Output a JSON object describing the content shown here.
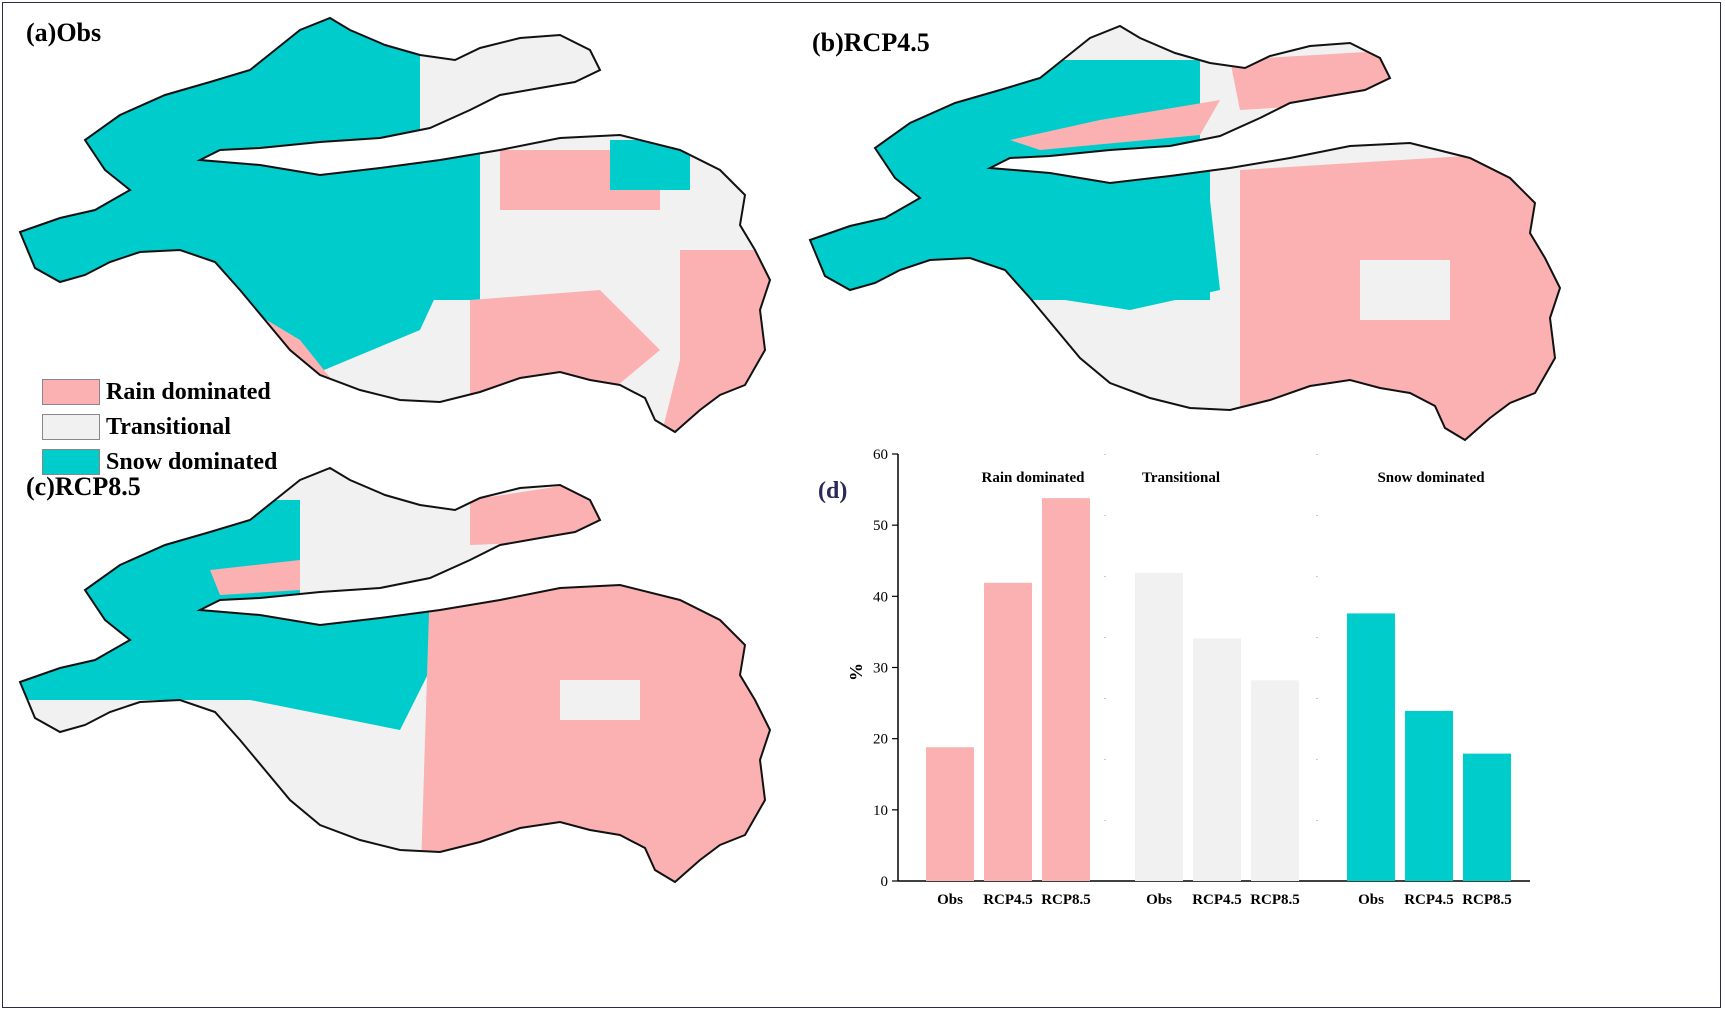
{
  "panels": {
    "a": "(a)Obs",
    "b": "(b)RCP4.5",
    "c": "(c)RCP8.5",
    "d": "(d)"
  },
  "legend": [
    {
      "label": "Rain dominated",
      "color": "#fbb1b1"
    },
    {
      "label": "Transitional",
      "color": "#f1f1f1"
    },
    {
      "label": "Snow dominated",
      "color": "#00cccc"
    }
  ],
  "chart_data": {
    "type": "bar",
    "ylabel": "%",
    "ylim": [
      0,
      60
    ],
    "yticks": [
      0,
      10,
      20,
      30,
      40,
      50,
      60
    ],
    "groups": [
      {
        "name": "Rain dominated",
        "color": "#fbb1b1",
        "categories": [
          "Obs",
          "RCP4.5",
          "RCP8.5"
        ],
        "values": [
          18.8,
          41.9,
          53.8
        ]
      },
      {
        "name": "Transitional",
        "color": "#f1f1f1",
        "categories": [
          "Obs",
          "RCP4.5",
          "RCP8.5"
        ],
        "values": [
          43.3,
          34.1,
          28.2
        ]
      },
      {
        "name": "Snow dominated",
        "color": "#00cccc",
        "categories": [
          "Obs",
          "RCP4.5",
          "RCP8.5"
        ],
        "values": [
          37.6,
          23.9,
          17.9
        ]
      }
    ]
  }
}
